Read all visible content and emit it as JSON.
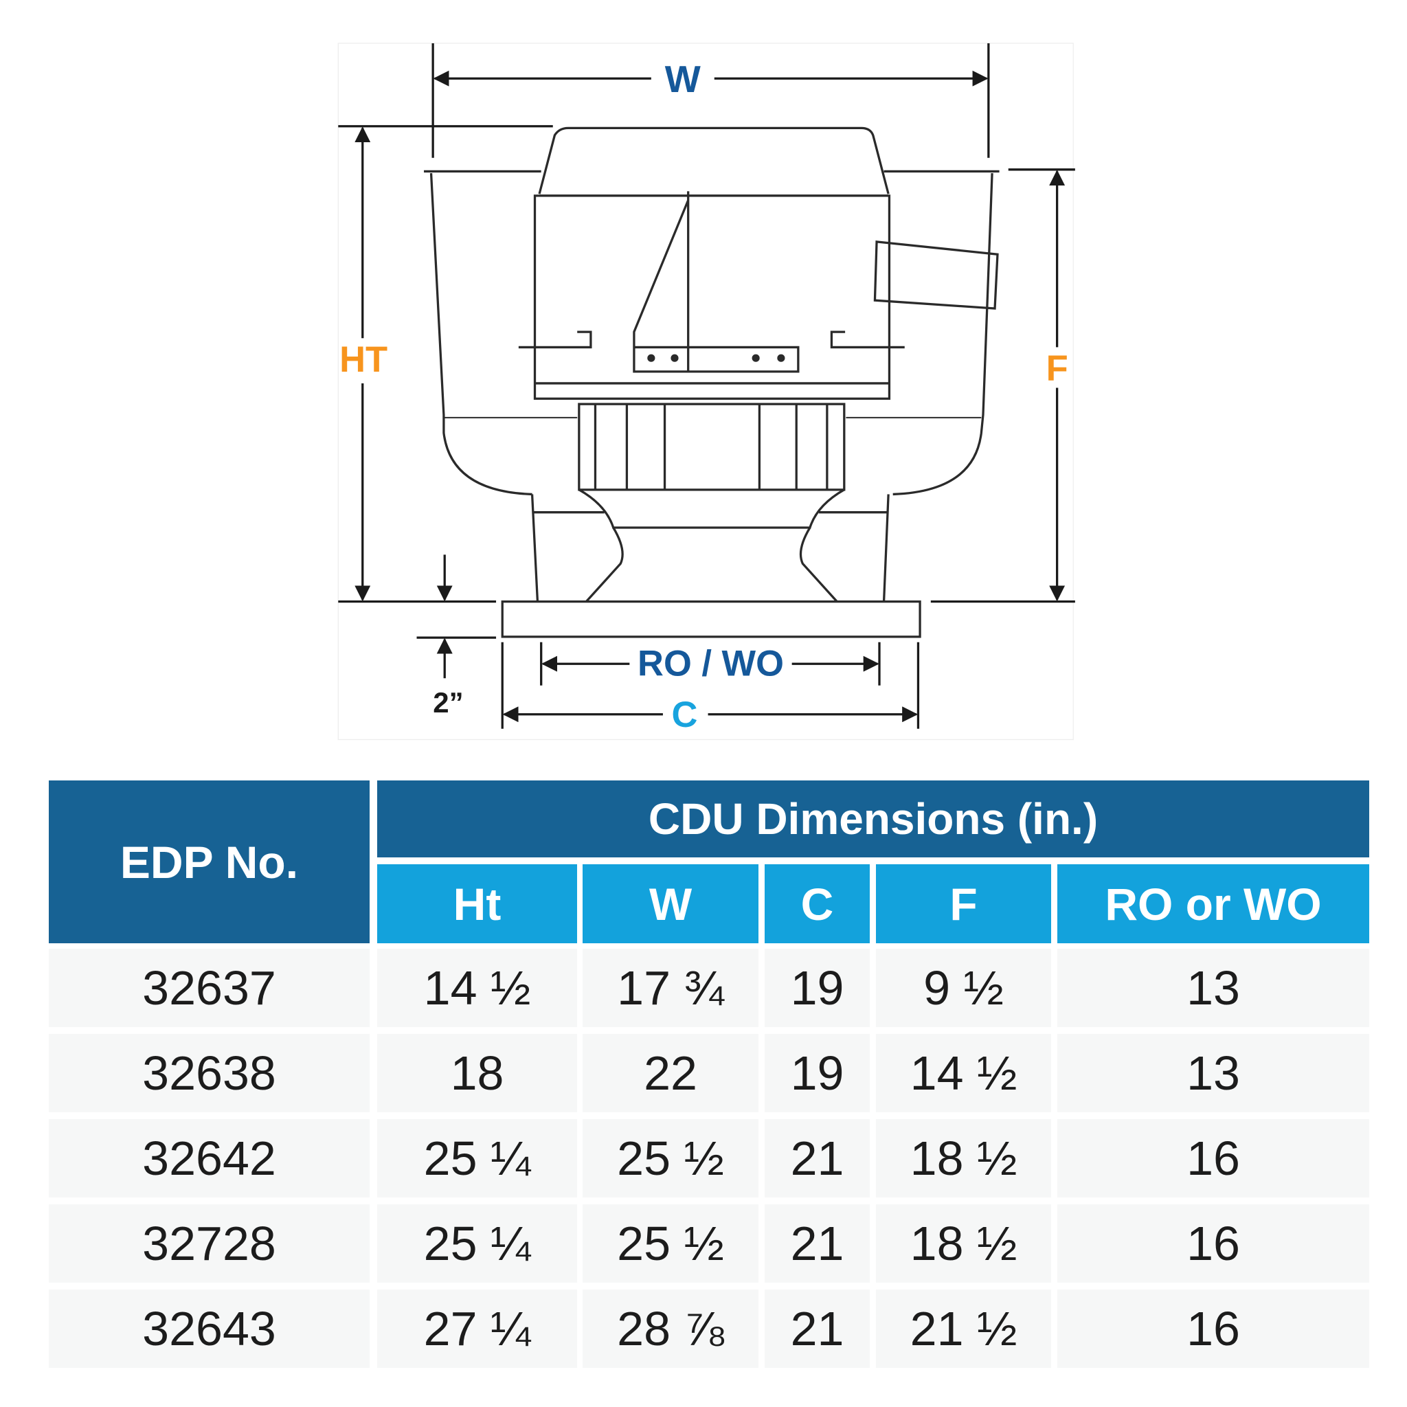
{
  "diagram": {
    "labels": {
      "w": "W",
      "ht": "HT",
      "f": "F",
      "ro_wo": "RO / WO",
      "c": "C",
      "base": "2”"
    },
    "colors": {
      "dark_blue": "#15589a",
      "light_blue": "#18a3de",
      "orange": "#f7941d",
      "line": "#1a1a1a"
    }
  },
  "table": {
    "edp_header": "EDP No.",
    "group_header": "CDU Dimensions (in.)",
    "columns": [
      "Ht",
      "W",
      "C",
      "F",
      "RO or WO"
    ],
    "rows": [
      {
        "edp": "32637",
        "ht": "14 ½",
        "w": "17 ¾",
        "c": "19",
        "f": "9 ½",
        "ro": "13"
      },
      {
        "edp": "32638",
        "ht": "18",
        "w": "22",
        "c": "19",
        "f": "14 ½",
        "ro": "13"
      },
      {
        "edp": "32642",
        "ht": "25 ¼",
        "w": "25 ½",
        "c": "21",
        "f": "18 ½",
        "ro": "16"
      },
      {
        "edp": "32728",
        "ht": "25 ¼",
        "w": "25 ½",
        "c": "21",
        "f": "18 ½",
        "ro": "16"
      },
      {
        "edp": "32643",
        "ht": "27 ¼",
        "w": "28 ⅞",
        "c": "21",
        "f": "21 ½",
        "ro": "16"
      }
    ],
    "colors": {
      "header_dark": "#176294",
      "header_light": "#13a2dc",
      "row_bg": "#f6f7f7"
    }
  }
}
